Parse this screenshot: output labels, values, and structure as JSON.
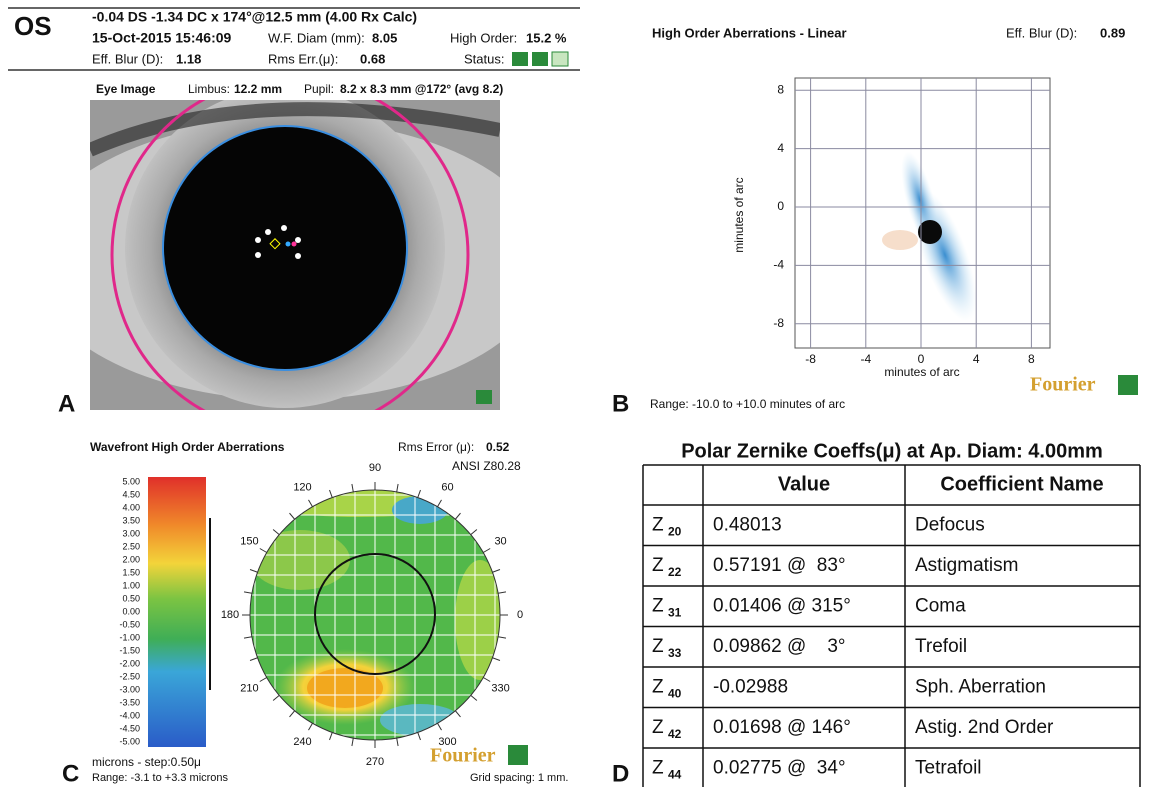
{
  "panel_labels": [
    "A",
    "B",
    "C",
    "D"
  ],
  "header": {
    "eye": "OS",
    "rx": "-0.04 DS -1.34 DC x 174°@12.5 mm (4.00 Rx Calc)",
    "date": "15-Oct-2015 15:46:09",
    "wf_label": "W.F. Diam (mm):",
    "wf_value": "8.05",
    "ho_label": "High Order:",
    "ho_value": "15.2 %",
    "blur_label": "Eff. Blur (D):",
    "blur_value": "1.18",
    "rms_label": "Rms Err.(μ):",
    "rms_value": "0.68",
    "status_label": "Status:"
  },
  "eye_image": {
    "title": "Eye Image",
    "limbus_label": "Limbus:",
    "limbus_value": "12.2 mm",
    "pupil_label": "Pupil:",
    "pupil_value": "8.2 x 8.3 mm @172° (avg 8.2)"
  },
  "psf": {
    "title": "High Order Aberrations - Linear",
    "blur_label": "Eff. Blur (D):",
    "blur_value": "0.89",
    "y_label": "minutes of arc",
    "x_label": "minutes of arc",
    "xticks": [
      -8,
      -4,
      0,
      4,
      8
    ],
    "yticks": [
      8,
      4,
      0,
      -4,
      -8
    ],
    "range": "Range: -10.0 to +10.0 minutes of arc",
    "brand": "Fourier"
  },
  "wavefront": {
    "title": "Wavefront High Order Aberrations",
    "rms_label": "Rms Error (μ):",
    "rms_value": "0.52",
    "standard": "ANSI Z80.28",
    "scale": [
      "5.00",
      "4.50",
      "4.00",
      "3.50",
      "3.00",
      "2.50",
      "2.00",
      "1.50",
      "1.00",
      "0.50",
      "0.00",
      "-0.50",
      "-1.00",
      "-1.50",
      "-2.00",
      "-2.50",
      "-3.00",
      "-3.50",
      "-4.00",
      "-4.50",
      "-5.00"
    ],
    "unit": "microns - step:0.50μ",
    "range": "Range: -3.1 to +3.3 microns",
    "angles": [
      "0",
      "30",
      "60",
      "90",
      "120",
      "150",
      "180",
      "210",
      "240",
      "270",
      "300",
      "330"
    ],
    "grid_spacing": "Grid spacing: 1 mm.",
    "brand": "Fourier"
  },
  "zernike": {
    "title": "Polar Zernike Coeffs(μ) at Ap. Diam: 4.00mm",
    "headers": [
      "Value",
      "Coefficient Name"
    ],
    "rows": [
      {
        "term": "Z",
        "sub": "20",
        "value": "0.48013",
        "name": "Defocus"
      },
      {
        "term": "Z",
        "sub": "22",
        "value": "0.57191 @  83°",
        "name": "Astigmatism"
      },
      {
        "term": "Z",
        "sub": "31",
        "value": "0.01406 @ 315°",
        "name": "Coma"
      },
      {
        "term": "Z",
        "sub": "33",
        "value": "0.09862 @    3°",
        "name": "Trefoil"
      },
      {
        "term": "Z",
        "sub": "40",
        "value": "-0.02988",
        "name": "Sph. Aberration"
      },
      {
        "term": "Z",
        "sub": "42",
        "value": "0.01698 @ 146°",
        "name": "Astig. 2nd Order"
      },
      {
        "term": "Z",
        "sub": "44",
        "value": "0.02775 @  34°",
        "name": "Tetrafoil"
      }
    ]
  }
}
